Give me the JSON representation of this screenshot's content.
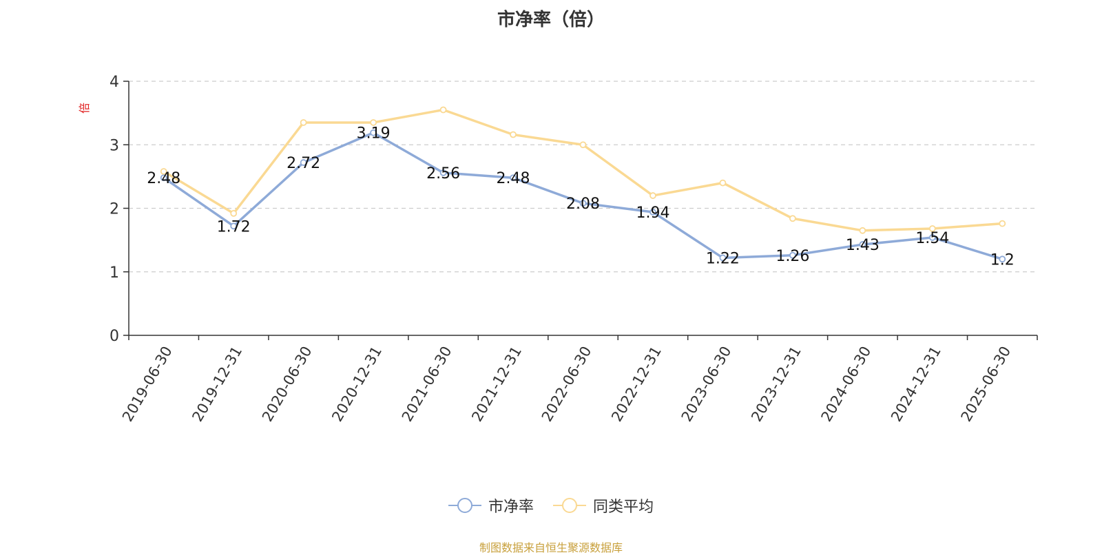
{
  "chart_data": {
    "type": "line",
    "title": "市净率（倍）",
    "ylabel": "倍",
    "xlabel": "",
    "categories": [
      "2019-06-30",
      "2019-12-31",
      "2020-06-30",
      "2020-12-31",
      "2021-06-30",
      "2021-12-31",
      "2022-06-30",
      "2022-12-31",
      "2023-06-30",
      "2023-12-31",
      "2024-06-30",
      "2024-12-31",
      "2025-06-30"
    ],
    "ylim": [
      0,
      4
    ],
    "yticks": [
      0,
      1,
      2,
      3,
      4
    ],
    "grid": true,
    "legend_position": "bottom",
    "series": [
      {
        "name": "市净率",
        "color": "#8eaad8",
        "values": [
          2.48,
          1.72,
          2.72,
          3.19,
          2.56,
          2.48,
          2.08,
          1.94,
          1.22,
          1.26,
          1.43,
          1.54,
          1.2
        ],
        "data_labels": true
      },
      {
        "name": "同类平均",
        "color": "#fad993",
        "values": [
          2.58,
          1.92,
          3.35,
          3.35,
          3.55,
          3.16,
          3.0,
          2.2,
          2.4,
          1.84,
          1.65,
          1.68,
          1.76
        ],
        "data_labels": false
      }
    ]
  },
  "footer": {
    "source": "制图数据来自恒生聚源数据库",
    "source_color": "#c8a03c"
  },
  "colors": {
    "axis": "#333333",
    "grid": "#cccccc",
    "ylabel": "#e02020"
  }
}
